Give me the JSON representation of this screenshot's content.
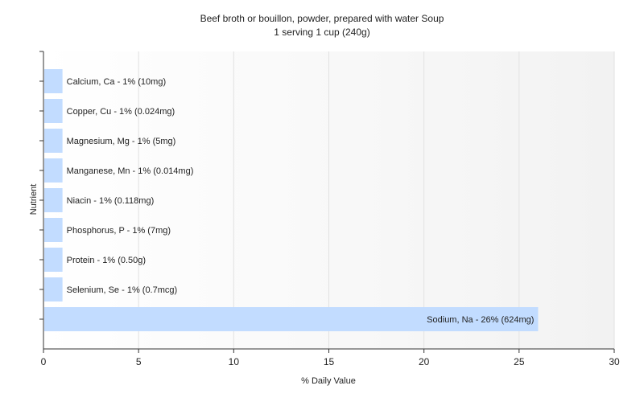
{
  "chart_data": {
    "type": "bar",
    "orientation": "horizontal",
    "title": "Beef broth or bouillon, powder, prepared with water Soup",
    "subtitle": "1 serving 1 cup (240g)",
    "xlabel": "% Daily Value",
    "ylabel": "Nutrient",
    "xlim": [
      0,
      30
    ],
    "xticks": [
      0,
      5,
      10,
      15,
      20,
      25,
      30
    ],
    "grid": true,
    "bar_color": "#c2dcff",
    "categories": [
      "Calcium, Ca",
      "Copper, Cu",
      "Magnesium, Mg",
      "Manganese, Mn",
      "Niacin",
      "Phosphorus, P",
      "Protein",
      "Selenium, Se",
      "Sodium, Na"
    ],
    "values": [
      1,
      1,
      1,
      1,
      1,
      1,
      1,
      1,
      26
    ],
    "bar_labels": [
      "Calcium, Ca - 1% (10mg)",
      "Copper, Cu - 1% (0.024mg)",
      "Magnesium, Mg - 1% (5mg)",
      "Manganese, Mn - 1% (0.014mg)",
      "Niacin - 1% (0.118mg)",
      "Phosphorus, P - 1% (7mg)",
      "Protein - 1% (0.50g)",
      "Selenium, Se - 1% (0.7mcg)",
      "Sodium, Na - 26% (624mg)"
    ]
  }
}
